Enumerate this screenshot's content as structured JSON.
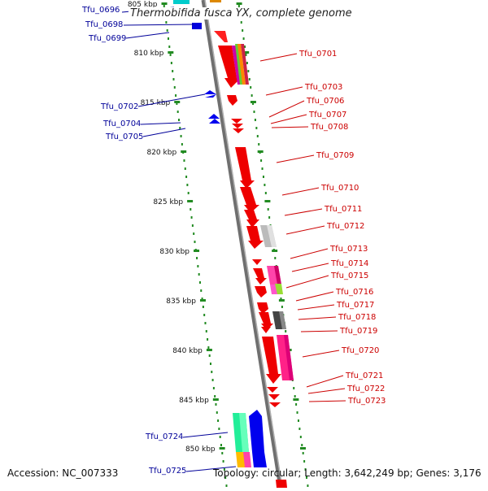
{
  "title": "Thermobifida fusca YX, complete genome",
  "accession": "Accession: NC_007333",
  "topology": "Topology: circular; Length: 3,642,249 bp; Genes: 3,176",
  "colors": {
    "forward": "#ff0000",
    "reverse": "#0000ff",
    "backbone": "#909090",
    "ticks": "#228b22",
    "label_forward": "#cc0000",
    "label_reverse": "#000099"
  },
  "kbp_ticks": [
    "805 kbp",
    "810 kbp",
    "815 kbp",
    "820 kbp",
    "825 kbp",
    "830 kbp",
    "835 kbp",
    "840 kbp",
    "845 kbp",
    "850 kbp"
  ],
  "genes_left": [
    "Tfu_0696",
    "Tfu_0698",
    "Tfu_0699",
    "Tfu_0702",
    "Tfu_0704",
    "Tfu_0705",
    "Tfu_0724",
    "Tfu_0725"
  ],
  "genes_right": [
    "Tfu_0701",
    "Tfu_0703",
    "Tfu_0706",
    "Tfu_0707",
    "Tfu_0708",
    "Tfu_0709",
    "Tfu_0710",
    "Tfu_0711",
    "Tfu_0712",
    "Tfu_0713",
    "Tfu_0714",
    "Tfu_0715",
    "Tfu_0716",
    "Tfu_0717",
    "Tfu_0718",
    "Tfu_0719",
    "Tfu_0720",
    "Tfu_0721",
    "Tfu_0722",
    "Tfu_0723"
  ]
}
